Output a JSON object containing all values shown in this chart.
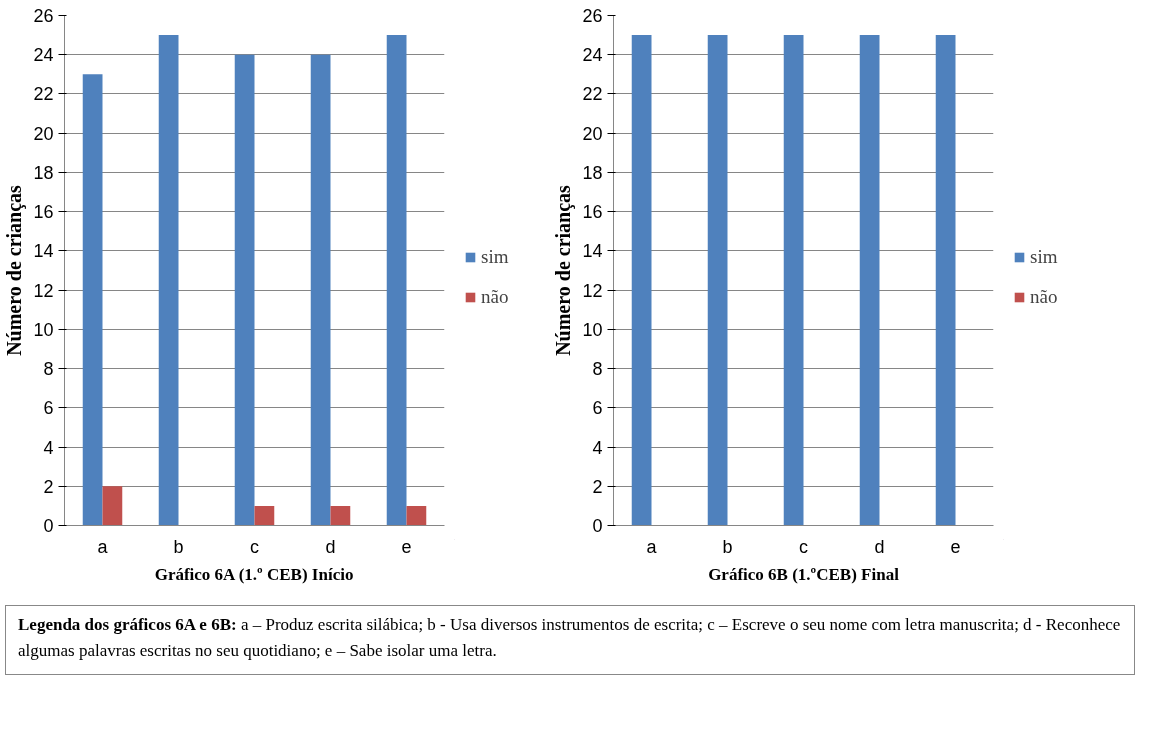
{
  "chart_data": [
    {
      "type": "bar",
      "xlabel": "Gráfico 6A (1.º CEB) Início",
      "ylabel": "Número de crianças",
      "categories": [
        "a",
        "b",
        "c",
        "d",
        "e"
      ],
      "series": [
        {
          "name": "sim",
          "color": "#4f81bd",
          "values": [
            23,
            25,
            24,
            24,
            25
          ]
        },
        {
          "name": "não",
          "color": "#c0504d",
          "values": [
            2,
            0,
            1,
            1,
            1
          ]
        }
      ],
      "ylim": [
        0,
        26
      ],
      "yticks": [
        0,
        2,
        4,
        6,
        8,
        10,
        12,
        14,
        16,
        18,
        20,
        22,
        24,
        26
      ],
      "grid": "y",
      "legend": "right"
    },
    {
      "type": "bar",
      "xlabel": "Gráfico 6B (1.ºCEB) Final",
      "ylabel": "Número de crianças",
      "categories": [
        "a",
        "b",
        "c",
        "d",
        "e"
      ],
      "series": [
        {
          "name": "sim",
          "color": "#4f81bd",
          "values": [
            25,
            25,
            25,
            25,
            25
          ]
        },
        {
          "name": "não",
          "color": "#c0504d",
          "values": [
            0,
            0,
            0,
            0,
            0
          ]
        }
      ],
      "ylim": [
        0,
        26
      ],
      "yticks": [
        0,
        2,
        4,
        6,
        8,
        10,
        12,
        14,
        16,
        18,
        20,
        22,
        24,
        26
      ],
      "grid": "y",
      "legend": "right"
    },
    {
      "type": "other",
      "annotations": [
        "Legenda dos gráficos 6A e 6B:",
        "a – Produz escrita silábica; b - Usa diversos instrumentos de escrita; c – Escreve o seu nome com letra manuscrita; d - Reconhece algumas palavras escritas no seu quotidiano; e – Sabe isolar uma letra."
      ]
    }
  ]
}
